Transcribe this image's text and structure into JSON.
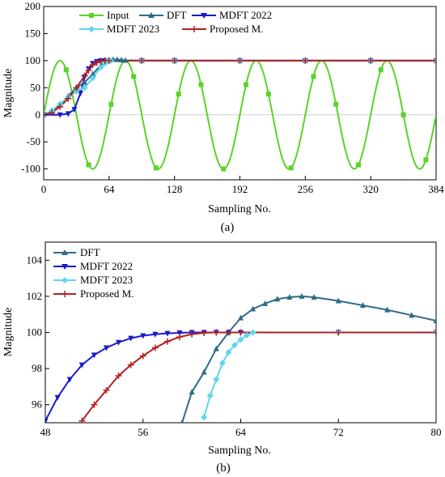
{
  "chart_data": [
    {
      "type": "line",
      "panel_label": "(a)",
      "title": "",
      "xlabel": "Sampling No.",
      "ylabel": "Magnitude",
      "xlim": [
        0,
        384
      ],
      "ylim": [
        -120,
        200
      ],
      "xticks": [
        0,
        64,
        128,
        192,
        256,
        320,
        384
      ],
      "yticks": [
        -100,
        -50,
        0,
        50,
        100,
        150,
        200
      ],
      "grid": false,
      "legend_position": "top",
      "series": [
        {
          "name": "Input",
          "color": "#5ad32a",
          "marker": "square",
          "signal": "sine",
          "amplitude": 100,
          "period_samples": 64,
          "phase_start": 0
        },
        {
          "name": "DFT",
          "color": "#2f6a8a",
          "marker": "triangle",
          "x": [
            0,
            8,
            16,
            24,
            32,
            40,
            48,
            56,
            60,
            64,
            68,
            72,
            76,
            80,
            96,
            128,
            192,
            256,
            320,
            384
          ],
          "y": [
            0,
            6,
            18,
            35,
            50,
            60,
            75,
            92,
            98,
            101,
            102,
            101.8,
            101.3,
            100.6,
            100,
            100,
            100,
            100,
            100,
            100
          ]
        },
        {
          "name": "MDFT 2022",
          "color": "#1a1acc",
          "marker": "triangle-down",
          "x": [
            0,
            16,
            24,
            30,
            36,
            40,
            44,
            48,
            52,
            56,
            60,
            64,
            96,
            128,
            192,
            256,
            320,
            384
          ],
          "y": [
            0,
            0,
            2,
            10,
            40,
            70,
            85,
            95,
            98.5,
            99.8,
            100,
            100,
            100,
            100,
            100,
            100,
            100,
            100
          ]
        },
        {
          "name": "MDFT 2023",
          "color": "#5fd6f0",
          "marker": "diamond",
          "x": [
            0,
            8,
            16,
            24,
            32,
            40,
            48,
            56,
            60,
            62,
            64,
            66,
            96,
            128,
            192,
            256,
            320,
            384
          ],
          "y": [
            0,
            8,
            20,
            33,
            43,
            50,
            68,
            88,
            95,
            98.5,
            100,
            100,
            100,
            100,
            100,
            100,
            100,
            100
          ]
        },
        {
          "name": "Proposed M.",
          "color": "#b22222",
          "marker": "plus",
          "x": [
            0,
            8,
            16,
            24,
            32,
            40,
            44,
            48,
            52,
            56,
            60,
            64,
            96,
            128,
            192,
            256,
            320,
            384
          ],
          "y": [
            0,
            4,
            15,
            30,
            50,
            72,
            82,
            92,
            96.5,
            99,
            100,
            100,
            100,
            100,
            100,
            100,
            100,
            100
          ]
        }
      ]
    },
    {
      "type": "line",
      "panel_label": "(b)",
      "title": "",
      "xlabel": "Sampling No.",
      "ylabel": "Magnitude",
      "xlim": [
        48,
        80
      ],
      "ylim": [
        95,
        105
      ],
      "xticks": [
        48,
        56,
        64,
        72,
        80
      ],
      "yticks": [
        96,
        98,
        100,
        102,
        104
      ],
      "grid": false,
      "legend_position": "top-left",
      "series": [
        {
          "name": "DFT",
          "color": "#2f6a8a",
          "marker": "triangle",
          "x": [
            59.2,
            60,
            61,
            62,
            63,
            64,
            65,
            66,
            67,
            68,
            69,
            70,
            72,
            74,
            76,
            78,
            80
          ],
          "y": [
            95,
            96.7,
            97.8,
            99.1,
            100.0,
            100.8,
            101.3,
            101.6,
            101.85,
            101.95,
            102.0,
            101.95,
            101.75,
            101.5,
            101.25,
            100.95,
            100.65
          ]
        },
        {
          "name": "MDFT 2022",
          "color": "#1a1acc",
          "marker": "triangle-down",
          "x": [
            48,
            49,
            50,
            51,
            52,
            53,
            54,
            55,
            56,
            57,
            58,
            59,
            60,
            61,
            62,
            63,
            64,
            72,
            80
          ],
          "y": [
            95.1,
            96.4,
            97.4,
            98.2,
            98.75,
            99.15,
            99.45,
            99.68,
            99.82,
            99.9,
            99.95,
            99.98,
            100,
            100,
            100,
            100,
            100,
            100,
            100
          ]
        },
        {
          "name": "MDFT 2023",
          "color": "#5fd6f0",
          "marker": "diamond",
          "x": [
            61,
            61.5,
            62,
            62.5,
            63,
            63.5,
            64,
            64.5,
            65,
            72,
            80
          ],
          "y": [
            95.3,
            96.5,
            97.4,
            98.3,
            98.9,
            99.3,
            99.6,
            99.85,
            100,
            100,
            100
          ]
        },
        {
          "name": "Proposed M.",
          "color": "#b22222",
          "marker": "plus",
          "x": [
            51,
            52,
            53,
            54,
            55,
            56,
            57,
            58,
            59,
            60,
            61,
            62,
            63,
            64,
            72,
            80
          ],
          "y": [
            95.1,
            96.0,
            96.8,
            97.6,
            98.2,
            98.7,
            99.15,
            99.5,
            99.75,
            99.9,
            99.98,
            100,
            100,
            100,
            100,
            100
          ]
        }
      ]
    }
  ]
}
